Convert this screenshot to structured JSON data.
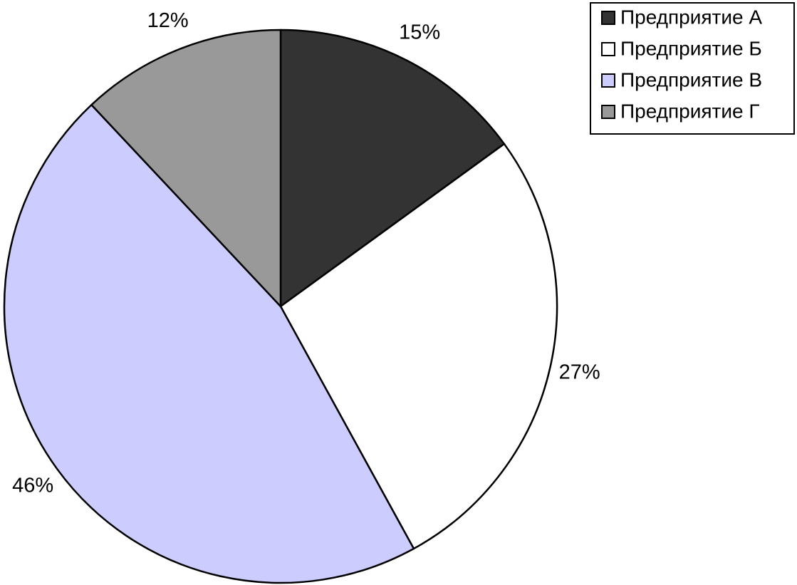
{
  "chart_data": {
    "type": "pie",
    "categories": [
      "Предприятие А",
      "Предприятие Б",
      "Предприятие В",
      "Предприятие Г"
    ],
    "values": [
      15,
      27,
      46,
      12
    ],
    "data_labels": [
      "15%",
      "27%",
      "46%",
      "12%"
    ],
    "colors": [
      "#333333",
      "#ffffff",
      "#ccccff",
      "#999999"
    ],
    "start_angle": "12 o'clock",
    "direction": "clockwise",
    "legend": {
      "position": "top-right",
      "entries": [
        "Предприятие А",
        "Предприятие Б",
        "Предприятие В",
        "Предприятие Г"
      ]
    },
    "title": ""
  }
}
